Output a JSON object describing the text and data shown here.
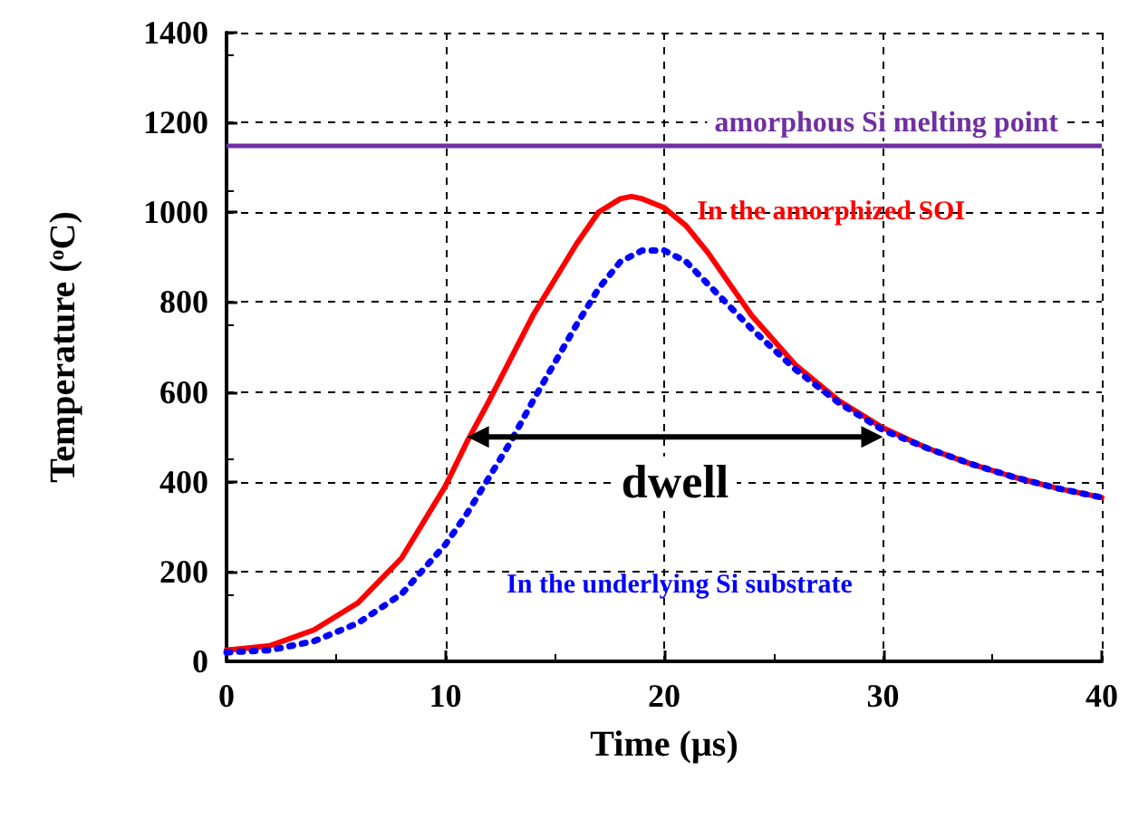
{
  "chart_data": {
    "type": "line",
    "xlabel": "Time (µs)",
    "ylabel": "Temperature ($^{o}$C)",
    "xlim": [
      0,
      40
    ],
    "xticks": [
      0,
      10,
      20,
      30,
      40
    ],
    "ylim": [
      0,
      1400
    ],
    "yticks": [
      0,
      200,
      400,
      600,
      800,
      1000,
      1200,
      1400
    ],
    "grid": true,
    "marker": "none",
    "series": [
      {
        "name": "In the amorphized SOI",
        "color": "#ff0000",
        "line_style": "solid",
        "x": [
          0,
          2,
          4,
          6,
          8,
          10,
          11,
          12,
          14,
          16,
          17,
          18,
          18.5,
          19,
          20,
          21,
          22,
          23,
          24,
          26,
          28,
          30,
          32,
          34,
          36,
          38,
          40
        ],
        "values": [
          25,
          35,
          70,
          130,
          230,
          390,
          490,
          580,
          770,
          930,
          1000,
          1030,
          1035,
          1030,
          1010,
          970,
          910,
          840,
          770,
          660,
          580,
          520,
          475,
          440,
          410,
          385,
          365
        ]
      },
      {
        "name": "In the underlying Si substrate",
        "color": "#0000ff",
        "line_style": "dotted",
        "x": [
          0,
          2,
          4,
          6,
          8,
          10,
          11,
          12,
          13,
          14,
          16,
          17,
          18,
          19,
          20,
          21,
          22,
          24,
          26,
          28,
          30,
          32,
          34,
          36,
          38,
          40
        ],
        "values": [
          20,
          25,
          45,
          85,
          150,
          260,
          330,
          410,
          490,
          580,
          750,
          830,
          890,
          915,
          915,
          890,
          840,
          740,
          650,
          575,
          515,
          475,
          440,
          410,
          385,
          365
        ]
      }
    ],
    "ref_lines": [
      {
        "axis": "y",
        "value": 1150,
        "label": "amorphous Si melting point",
        "color": "#7030a0"
      }
    ],
    "annotations": [
      "dwell"
    ]
  }
}
